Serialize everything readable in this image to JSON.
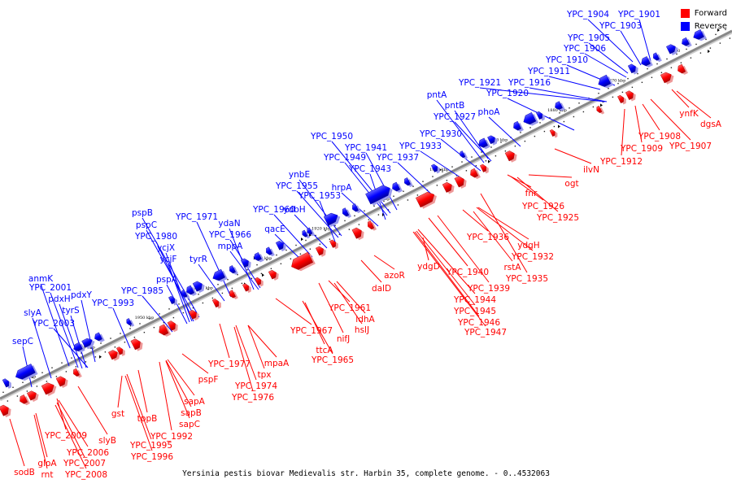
{
  "caption": "Yersinia pestis biovar Medievalis str. Harbin 35, complete genome. - 0..4532063",
  "legend": [
    {
      "label": "Forward",
      "color": "#ff0000"
    },
    {
      "label": "Reverse",
      "color": "#0000ff"
    }
  ],
  "colors": {
    "forward": "#ff0000",
    "reverse": "#0000ff",
    "axis": "#888888"
  },
  "ticks": [
    "1860",
    "1870 kbp",
    "1880 kbp",
    "1890 kbp",
    "1900 kbp",
    "1910 kbp",
    "1920 kbp",
    "1930 kbp",
    "1940 kbp",
    "1950 kbp",
    "1960 kbp",
    "1970 kbp"
  ],
  "reverse_labels": [
    "YPC_1904",
    "YPC_1901",
    "YPC_1903",
    "YPC_1905",
    "YPC_1906",
    "YPC_1910",
    "YPC_1911",
    "YPC_1921",
    "YPC_1916",
    "pntA",
    "YPC_1920",
    "pntB",
    "phoA",
    "YPC_1927",
    "YPC_1930",
    "YPC_1950",
    "YPC_1941",
    "YPC_1933",
    "YPC_1949",
    "YPC_1937",
    "YPC_1943",
    "ynbE",
    "YPC_1955",
    "hrpA",
    "YPC_1953",
    "YPC_1960",
    "ydbH",
    "pspB",
    "YPC_1971",
    "pspC",
    "ydaN",
    "qacE",
    "YPC_1980",
    "YPC_1966",
    "ycjX",
    "mppA",
    "ycjF",
    "tyrR",
    "pspA",
    "anmK",
    "YPC_2001",
    "YPC_1985",
    "pdxH",
    "pdxY",
    "YPC_1993",
    "tyrS",
    "slyA",
    "YPC_2003",
    "sepC"
  ],
  "forward_labels": [
    "ynfK",
    "dgsA",
    "YPC_1908",
    "YPC_1907",
    "YPC_1909",
    "YPC_1912",
    "ogt",
    "ilvN",
    "fnr",
    "YPC_1926",
    "YPC_1925",
    "YPC_1936",
    "ydgH",
    "YPC_1932",
    "rstA",
    "YPC_1935",
    "azoR",
    "ydgD",
    "YPC_1940",
    "YPC_1939",
    "YPC_1944",
    "YPC_1945",
    "YPC_1946",
    "YPC_1947",
    "dalD",
    "YPC_1961",
    "ldhA",
    "hslJ",
    "YPC_1967",
    "nifJ",
    "ttcA",
    "YPC_1965",
    "YPC_1977",
    "tpx",
    "mpaA",
    "YPC_1974",
    "YPC_1976",
    "pspF",
    "sapA",
    "sapB",
    "sapC",
    "YPC_1992",
    "tppB",
    "gst",
    "YPC_1995",
    "YPC_1996",
    "slyB",
    "YPC_2009",
    "YPC_2006",
    "YPC_2007",
    "YPC_2008",
    "gloA",
    "sodB",
    "rnt"
  ]
}
